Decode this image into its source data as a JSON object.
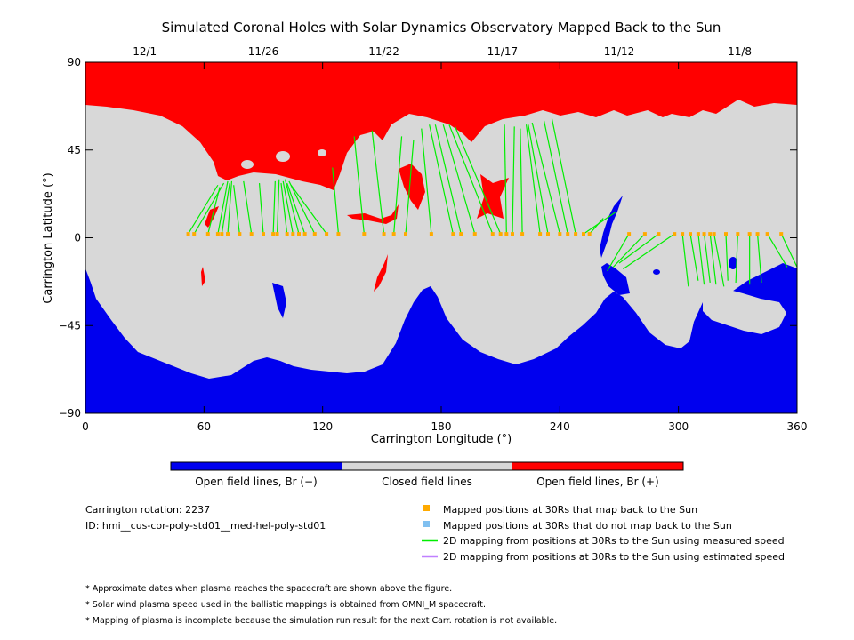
{
  "chart_data": {
    "type": "heatmap",
    "title": "Simulated Coronal Holes with Solar Dynamics Observatory Mapped Back to the Sun",
    "xlabel": "Carrington Longitude (°)",
    "ylabel": "Carrington Latitude (°)",
    "xlim": [
      0,
      360
    ],
    "ylim": [
      -90,
      90
    ],
    "xticks": [
      0,
      60,
      120,
      180,
      240,
      300,
      360
    ],
    "yticks": [
      90,
      45,
      0,
      -45,
      -90
    ],
    "ytick_labels": [
      "90",
      "45",
      "0",
      "−45",
      "−90"
    ],
    "top_dates": [
      {
        "label": "12/1",
        "lon": 30
      },
      {
        "label": "11/26",
        "lon": 90
      },
      {
        "label": "11/22",
        "lon": 151
      },
      {
        "label": "11/17",
        "lon": 211
      },
      {
        "label": "11/12",
        "lon": 270
      },
      {
        "label": "11/8",
        "lon": 331
      }
    ],
    "regions": {
      "positive": {
        "label": "Open field lines, Br (+)",
        "color": "#ff0000"
      },
      "closed": {
        "label": "Closed field lines",
        "color": "#d8d8d8"
      },
      "negative": {
        "label": "Open field lines, Br (−)",
        "color": "#0000ee"
      }
    },
    "mapped_positions_lon": [
      52,
      55,
      62,
      67,
      69,
      72,
      78,
      84,
      90,
      95,
      97,
      102,
      105,
      108,
      111,
      116,
      122,
      128,
      141,
      151,
      156,
      162,
      175,
      186,
      190,
      197,
      206,
      210,
      213,
      216,
      221,
      230,
      234,
      240,
      244,
      248,
      252,
      255,
      275,
      283,
      290,
      298,
      302,
      306,
      310,
      313,
      316,
      318,
      324,
      330,
      336,
      340,
      345,
      352
    ],
    "field_lines": [
      {
        "lon_start": 52,
        "lon_end": 67,
        "lat_end": 27
      },
      {
        "lon_start": 55,
        "lon_end": 70,
        "lat_end": 28
      },
      {
        "lon_start": 62,
        "lon_end": 68,
        "lat_end": 26
      },
      {
        "lon_start": 67,
        "lon_end": 72,
        "lat_end": 29
      },
      {
        "lon_start": 69,
        "lon_end": 73,
        "lat_end": 28
      },
      {
        "lon_start": 72,
        "lon_end": 74,
        "lat_end": 29
      },
      {
        "lon_start": 78,
        "lon_end": 75,
        "lat_end": 27
      },
      {
        "lon_start": 84,
        "lon_end": 80,
        "lat_end": 29
      },
      {
        "lon_start": 90,
        "lon_end": 88,
        "lat_end": 28
      },
      {
        "lon_start": 95,
        "lon_end": 96,
        "lat_end": 29
      },
      {
        "lon_start": 97,
        "lon_end": 98,
        "lat_end": 30
      },
      {
        "lon_start": 102,
        "lon_end": 99,
        "lat_end": 28
      },
      {
        "lon_start": 105,
        "lon_end": 100,
        "lat_end": 29
      },
      {
        "lon_start": 108,
        "lon_end": 101,
        "lat_end": 30
      },
      {
        "lon_start": 111,
        "lon_end": 102,
        "lat_end": 28
      },
      {
        "lon_start": 116,
        "lon_end": 103,
        "lat_end": 29
      },
      {
        "lon_start": 122,
        "lon_end": 104,
        "lat_end": 27
      },
      {
        "lon_start": 128,
        "lon_end": 125,
        "lat_end": 36
      },
      {
        "lon_start": 141,
        "lon_end": 136,
        "lat_end": 52
      },
      {
        "lon_start": 151,
        "lon_end": 145,
        "lat_end": 55
      },
      {
        "lon_start": 156,
        "lon_end": 160,
        "lat_end": 52
      },
      {
        "lon_start": 162,
        "lon_end": 166,
        "lat_end": 50
      },
      {
        "lon_start": 175,
        "lon_end": 170,
        "lat_end": 56
      },
      {
        "lon_start": 186,
        "lon_end": 174,
        "lat_end": 58
      },
      {
        "lon_start": 190,
        "lon_end": 177,
        "lat_end": 58
      },
      {
        "lon_start": 197,
        "lon_end": 181,
        "lat_end": 58
      },
      {
        "lon_start": 206,
        "lon_end": 184,
        "lat_end": 58
      },
      {
        "lon_start": 210,
        "lon_end": 187,
        "lat_end": 57
      },
      {
        "lon_start": 213,
        "lon_end": 212,
        "lat_end": 58
      },
      {
        "lon_start": 216,
        "lon_end": 217,
        "lat_end": 57
      },
      {
        "lon_start": 221,
        "lon_end": 220,
        "lat_end": 56
      },
      {
        "lon_start": 230,
        "lon_end": 223,
        "lat_end": 58
      },
      {
        "lon_start": 234,
        "lon_end": 224,
        "lat_end": 58
      },
      {
        "lon_start": 240,
        "lon_end": 226,
        "lat_end": 59
      },
      {
        "lon_start": 244,
        "lon_end": 232,
        "lat_end": 60
      },
      {
        "lon_start": 248,
        "lon_end": 236,
        "lat_end": 61
      },
      {
        "lon_start": 252,
        "lon_end": 268,
        "lat_end": 13
      },
      {
        "lon_start": 255,
        "lon_end": 262,
        "lat_end": 10
      },
      {
        "lon_start": 275,
        "lon_end": 264,
        "lat_end": -17
      },
      {
        "lon_start": 283,
        "lon_end": 267,
        "lat_end": -15
      },
      {
        "lon_start": 290,
        "lon_end": 270,
        "lat_end": -13
      },
      {
        "lon_start": 298,
        "lon_end": 272,
        "lat_end": -16
      },
      {
        "lon_start": 302,
        "lon_end": 305,
        "lat_end": -25
      },
      {
        "lon_start": 306,
        "lon_end": 310,
        "lat_end": -22
      },
      {
        "lon_start": 310,
        "lon_end": 313,
        "lat_end": -24
      },
      {
        "lon_start": 313,
        "lon_end": 316,
        "lat_end": -23
      },
      {
        "lon_start": 316,
        "lon_end": 319,
        "lat_end": -24
      },
      {
        "lon_start": 318,
        "lon_end": 323,
        "lat_end": -25
      },
      {
        "lon_start": 324,
        "lon_end": 325,
        "lat_end": -22
      },
      {
        "lon_start": 330,
        "lon_end": 329,
        "lat_end": -23
      },
      {
        "lon_start": 336,
        "lon_end": 336,
        "lat_end": -24
      },
      {
        "lon_start": 340,
        "lon_end": 342,
        "lat_end": -23
      },
      {
        "lon_start": 345,
        "lon_end": 355,
        "lat_end": -15
      },
      {
        "lon_start": 352,
        "lon_end": 360,
        "lat_end": -15
      }
    ],
    "mapped_lat": 2,
    "series_colors": {
      "mapped": "#ffaa00",
      "unmapped": "#80c0f0",
      "measured": "#00ee00",
      "estimated": "#c080ff"
    }
  },
  "info": {
    "rotation": "Carrington rotation: 2237",
    "id": "ID: hmi__cus-cor-poly-std01__med-hel-poly-std01"
  },
  "legend": {
    "mapped": "Mapped positions at 30Rs that map back to the Sun",
    "unmapped": "Mapped positions at 30Rs that do not map back to the Sun",
    "measured": "2D mapping from positions at 30Rs to the Sun using measured speed",
    "estimated": "2D mapping from positions at 30Rs to the Sun using estimated speed"
  },
  "notes": [
    "* Approximate dates when plasma reaches the spacecraft are shown above the figure.",
    "* Solar wind plasma speed used in the ballistic mappings is obtained from OMNI_M spacecraft.",
    "* Mapping of plasma is incomplete because the simulation run result for the next Carr. rotation is not available."
  ]
}
